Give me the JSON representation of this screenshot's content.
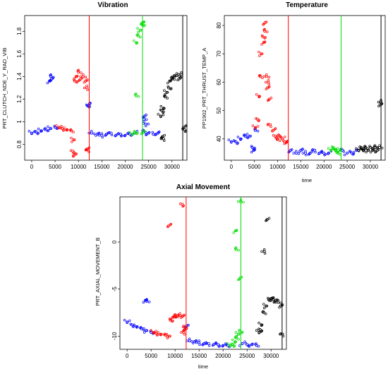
{
  "chart_data": [
    {
      "type": "scatter",
      "title": "Vibration",
      "xlabel": "",
      "ylabel": "PRT_CLUTCH_NDE_Y_RAD_VIB",
      "xlim": [
        -1500,
        33200
      ],
      "ylim": [
        0.66,
        1.94
      ],
      "xticks": [
        0,
        5000,
        10000,
        15000,
        20000,
        25000,
        30000
      ],
      "yticks": [
        0.8,
        1.0,
        1.2,
        1.4,
        1.6,
        1.8
      ],
      "vlines": [
        {
          "x": 12300,
          "color": "#ff0000"
        },
        {
          "x": 23700,
          "color": "#00dd00"
        },
        {
          "x": 32300,
          "color": "#000000"
        }
      ],
      "series": [
        {
          "color": "#0000ff",
          "points": [
            [
              0,
              0.9
            ],
            [
              1000,
              0.91
            ],
            [
              2000,
              0.92
            ],
            [
              3000,
              0.93
            ],
            [
              4000,
              0.94
            ],
            [
              5000,
              0.95
            ],
            [
              3800,
              1.36
            ],
            [
              4100,
              1.4
            ],
            [
              4300,
              1.38
            ],
            [
              12800,
              0.9
            ],
            [
              14000,
              0.89
            ],
            [
              15000,
              0.88
            ],
            [
              16000,
              0.89
            ],
            [
              17000,
              0.9
            ],
            [
              18000,
              0.88
            ],
            [
              19000,
              0.89
            ],
            [
              20000,
              0.88
            ],
            [
              21000,
              0.89
            ],
            [
              22000,
              0.9
            ],
            [
              12000,
              1.14
            ],
            [
              12400,
              1.16
            ],
            [
              24000,
              0.91
            ],
            [
              25000,
              0.9
            ],
            [
              26000,
              0.89
            ],
            [
              27000,
              0.9
            ],
            [
              24000,
              1.02
            ],
            [
              24200,
              1.05
            ],
            [
              24400,
              0.98
            ]
          ]
        },
        {
          "color": "#ff0000",
          "points": [
            [
              5800,
              0.95
            ],
            [
              6500,
              0.94
            ],
            [
              7500,
              0.93
            ],
            [
              8500,
              0.92
            ],
            [
              9000,
              0.84
            ],
            [
              9200,
              1.36
            ],
            [
              9500,
              1.4
            ],
            [
              10000,
              1.44
            ],
            [
              10500,
              1.38
            ],
            [
              11000,
              1.4
            ],
            [
              11500,
              1.36
            ],
            [
              11800,
              1.3
            ],
            [
              11900,
              0.76
            ],
            [
              12100,
              0.75
            ],
            [
              9000,
              0.7
            ],
            [
              8800,
              0.74
            ]
          ]
        },
        {
          "color": "#00dd00",
          "points": [
            [
              21500,
              0.89
            ],
            [
              22200,
              0.91
            ],
            [
              22400,
              1.7
            ],
            [
              22800,
              1.76
            ],
            [
              23200,
              1.81
            ],
            [
              23600,
              1.86
            ],
            [
              23800,
              1.88
            ],
            [
              22300,
              1.23
            ],
            [
              23900,
              0.91
            ]
          ]
        },
        {
          "color": "#000000",
          "points": [
            [
              27600,
              1.05
            ],
            [
              27800,
              1.1
            ],
            [
              28200,
              1.12
            ],
            [
              28600,
              1.22
            ],
            [
              28900,
              1.26
            ],
            [
              29300,
              1.3
            ],
            [
              29500,
              1.36
            ],
            [
              30000,
              1.38
            ],
            [
              30500,
              1.4
            ],
            [
              31000,
              1.41
            ],
            [
              31500,
              1.38
            ],
            [
              32000,
              1.42
            ],
            [
              28000,
              0.87
            ],
            [
              28200,
              0.85
            ],
            [
              32500,
              0.95
            ],
            [
              32700,
              0.93
            ]
          ]
        }
      ]
    },
    {
      "type": "scatter",
      "title": "Temperature",
      "xlabel": "time",
      "ylabel": "PP1902_PRT_THRUST_TEMP_A",
      "xlim": [
        -1500,
        33200
      ],
      "ylim": [
        32.5,
        83.5
      ],
      "xticks": [
        0,
        5000,
        10000,
        15000,
        20000,
        25000,
        30000
      ],
      "yticks": [
        40,
        50,
        60,
        70,
        80
      ],
      "vlines": [
        {
          "x": 12300,
          "color": "#ff0000"
        },
        {
          "x": 23700,
          "color": "#00dd00"
        },
        {
          "x": 32300,
          "color": "#000000"
        }
      ],
      "series": [
        {
          "color": "#0000ff",
          "points": [
            [
              0,
              39
            ],
            [
              1000,
              39
            ],
            [
              2000,
              40
            ],
            [
              3000,
              41
            ],
            [
              4000,
              41
            ],
            [
              4500,
              37
            ],
            [
              4800,
              36
            ],
            [
              5200,
              43
            ],
            [
              12800,
              36
            ],
            [
              14000,
              35
            ],
            [
              15000,
              36
            ],
            [
              16000,
              35
            ],
            [
              17000,
              35
            ],
            [
              18000,
              36
            ],
            [
              19000,
              35
            ],
            [
              20000,
              35
            ],
            [
              21000,
              35
            ],
            [
              24000,
              36
            ],
            [
              25000,
              35
            ],
            [
              26000,
              35
            ],
            [
              27000,
              36
            ]
          ]
        },
        {
          "color": "#ff0000",
          "points": [
            [
              5200,
              44
            ],
            [
              5600,
              47
            ],
            [
              6000,
              55
            ],
            [
              6300,
              62
            ],
            [
              6500,
              70
            ],
            [
              6800,
              76
            ],
            [
              7000,
              74
            ],
            [
              7200,
              78
            ],
            [
              7300,
              81
            ],
            [
              7600,
              62
            ],
            [
              7800,
              58
            ],
            [
              8000,
              60
            ],
            [
              8200,
              54
            ],
            [
              8400,
              45
            ],
            [
              9000,
              43
            ],
            [
              9500,
              41
            ],
            [
              10000,
              40
            ],
            [
              10500,
              41
            ],
            [
              11000,
              40
            ],
            [
              11500,
              39
            ],
            [
              12000,
              39
            ]
          ]
        },
        {
          "color": "#00dd00",
          "points": [
            [
              21500,
              36
            ],
            [
              22000,
              37
            ],
            [
              22500,
              36
            ],
            [
              23000,
              35
            ],
            [
              23500,
              36
            ]
          ]
        },
        {
          "color": "#000000",
          "points": [
            [
              27500,
              36
            ],
            [
              28000,
              37
            ],
            [
              28500,
              36
            ],
            [
              29000,
              37
            ],
            [
              29500,
              36
            ],
            [
              30000,
              37
            ],
            [
              30500,
              36
            ],
            [
              31000,
              37
            ],
            [
              31500,
              36
            ],
            [
              32000,
              37
            ],
            [
              32100,
              52
            ],
            [
              32300,
              53
            ]
          ]
        }
      ]
    },
    {
      "type": "scatter",
      "title": "Axial Movement",
      "xlabel": "time",
      "ylabel": "PRT_AXIAL_MOVEMENT_B",
      "xlim": [
        -1500,
        33200
      ],
      "ylim": [
        -11.4,
        4.8
      ],
      "xticks": [
        0,
        5000,
        10000,
        15000,
        20000,
        25000,
        30000
      ],
      "yticks": [
        -10,
        -5,
        0
      ],
      "vlines": [
        {
          "x": 12300,
          "color": "#ff0000"
        },
        {
          "x": 23700,
          "color": "#00dd00"
        },
        {
          "x": 32300,
          "color": "#000000"
        }
      ],
      "series": [
        {
          "color": "#0000ff",
          "points": [
            [
              0,
              -8.5
            ],
            [
              1000,
              -8.8
            ],
            [
              2000,
              -9.0
            ],
            [
              3000,
              -9.2
            ],
            [
              4000,
              -9.4
            ],
            [
              5000,
              -9.6
            ],
            [
              3800,
              -6.2
            ],
            [
              4100,
              -6.3
            ],
            [
              12500,
              -8.9
            ],
            [
              13000,
              -10.5
            ],
            [
              14000,
              -10.6
            ],
            [
              15000,
              -10.7
            ],
            [
              16000,
              -10.8
            ],
            [
              17000,
              -10.8
            ],
            [
              18000,
              -10.9
            ],
            [
              19000,
              -10.9
            ],
            [
              20000,
              -11.0
            ],
            [
              21000,
              -11.0
            ],
            [
              24000,
              -10.8
            ],
            [
              25000,
              -10.9
            ],
            [
              26000,
              -10.9
            ],
            [
              27000,
              -11.0
            ]
          ]
        },
        {
          "color": "#ff0000",
          "points": [
            [
              5500,
              -9.6
            ],
            [
              6000,
              -9.7
            ],
            [
              7000,
              -9.8
            ],
            [
              8000,
              -9.9
            ],
            [
              8800,
              -10.0
            ],
            [
              9000,
              -8.3
            ],
            [
              9500,
              -8.0
            ],
            [
              10000,
              -7.9
            ],
            [
              10500,
              -7.8
            ],
            [
              11000,
              -7.8
            ],
            [
              11500,
              -7.9
            ],
            [
              11800,
              -9.6
            ],
            [
              12000,
              -9.3
            ],
            [
              12200,
              -9.0
            ],
            [
              8600,
              1.7
            ],
            [
              11500,
              4.0
            ]
          ]
        },
        {
          "color": "#00dd00",
          "points": [
            [
              21500,
              -11.0
            ],
            [
              22000,
              -10.9
            ],
            [
              22500,
              -10.6
            ],
            [
              22800,
              -10.2
            ],
            [
              23200,
              -9.8
            ],
            [
              23500,
              -9.5
            ],
            [
              22600,
              1.2
            ],
            [
              22700,
              -0.8
            ],
            [
              23600,
              -3.8
            ],
            [
              23700,
              4.3
            ]
          ]
        },
        {
          "color": "#000000",
          "points": [
            [
              27500,
              -9.6
            ],
            [
              27700,
              -9.3
            ],
            [
              28000,
              -8.8
            ],
            [
              28500,
              -7.5
            ],
            [
              29000,
              -6.8
            ],
            [
              29500,
              -6.1
            ],
            [
              30000,
              -6.0
            ],
            [
              30500,
              -6.1
            ],
            [
              31000,
              -6.2
            ],
            [
              31500,
              -6.4
            ],
            [
              32000,
              -6.8
            ],
            [
              28600,
              -1.0
            ],
            [
              29200,
              2.4
            ],
            [
              32400,
              -9.8
            ]
          ]
        }
      ]
    }
  ]
}
